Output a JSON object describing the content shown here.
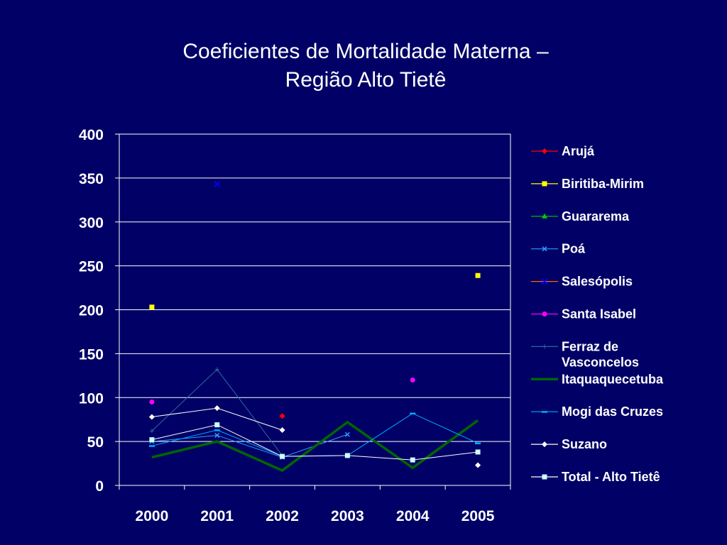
{
  "chart_data": {
    "type": "line",
    "title_lines": [
      "Coeficientes de Mortalidade Materna –",
      "Região Alto Tietê"
    ],
    "xlabel": "",
    "ylabel": "",
    "categories": [
      "2000",
      "2001",
      "2002",
      "2003",
      "2004",
      "2005"
    ],
    "ylim": [
      0,
      400
    ],
    "yticks": [
      0,
      50,
      100,
      150,
      200,
      250,
      300,
      350,
      400
    ],
    "grid": true,
    "legend_position": "right",
    "series": [
      {
        "name": "Arujá",
        "color": "#ff0000",
        "marker": "diamond",
        "values": [
          null,
          null,
          79,
          null,
          null,
          null
        ]
      },
      {
        "name": "Biritiba-Mirim",
        "color": "#ffff00",
        "marker": "square",
        "values": [
          203,
          null,
          null,
          null,
          null,
          239
        ]
      },
      {
        "name": "Guararema",
        "color": "#00cc00",
        "marker": "triangle",
        "values": [
          null,
          null,
          null,
          null,
          null,
          null
        ]
      },
      {
        "name": "Poá",
        "color": "#3399ff",
        "marker": "x",
        "values": [
          50,
          57,
          32,
          58,
          null,
          null
        ]
      },
      {
        "name": "Salesópolis",
        "color": "#ff6600",
        "marker": "star",
        "values": [
          null,
          343,
          null,
          null,
          null,
          null
        ]
      },
      {
        "name": "Santa Isabel",
        "color": "#ff00ff",
        "marker": "circle",
        "values": [
          95,
          null,
          null,
          null,
          120,
          null
        ]
      },
      {
        "name": "Ferraz de Vasconcelos",
        "color": "#336699",
        "marker": "plus",
        "values": [
          62,
          132,
          34,
          null,
          null,
          null
        ]
      },
      {
        "name": "Itaquaquecetuba",
        "color": "#006600",
        "marker": "none",
        "values": [
          32,
          50,
          17,
          72,
          20,
          74
        ]
      },
      {
        "name": "Mogi das Cruzes",
        "color": "#00aaff",
        "marker": "dash",
        "values": [
          45,
          63,
          33,
          34,
          82,
          48
        ]
      },
      {
        "name": "Suzano",
        "color": "#ffffff",
        "marker": "diamond",
        "values": [
          78,
          88,
          63,
          null,
          null,
          23
        ]
      },
      {
        "name": "Total - Alto Tietê",
        "color": "#ffffff",
        "marker": "square-light",
        "values": [
          52,
          69,
          33,
          34,
          29,
          38
        ]
      }
    ]
  }
}
